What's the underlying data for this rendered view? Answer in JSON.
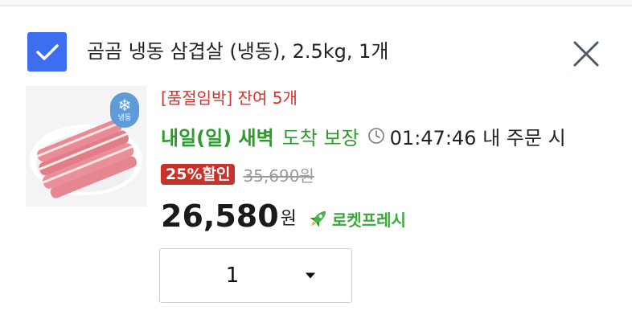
{
  "item": {
    "title": "곰곰 냉동 삼겹살 (냉동), 2.5kg, 1개",
    "frozen_label": "냉동",
    "stock_notice": "[품절임박] 잔여 5개",
    "delivery_day": "내일(일) 새벽",
    "delivery_guarantee": "도착 보장",
    "cutoff_time": "01:47:46 내 주문 시",
    "discount_badge": "25%할인",
    "original_price": "35,690원",
    "sale_price": "26,580",
    "currency": "원",
    "rocket_label": "로켓프레시",
    "quantity": "1"
  },
  "colors": {
    "checkbox": "#3d6ef0",
    "stock_red": "#d9302c",
    "delivery_green": "#2e9a2e",
    "discount_red": "#c8322a",
    "rocket_green": "#3aa83a"
  },
  "icons": {
    "checkbox": "check-icon",
    "close": "close-icon",
    "frozen": "snowflake-icon",
    "clock": "clock-icon",
    "rocket": "rocket-icon",
    "dropdown": "caret-down-icon"
  }
}
